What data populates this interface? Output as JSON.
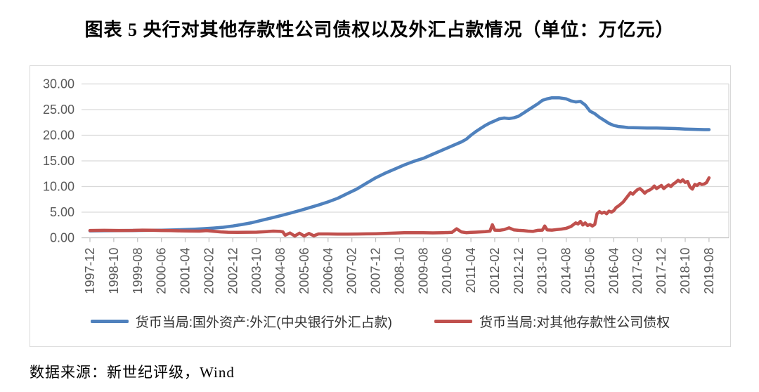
{
  "title": "图表 5  央行对其他存款性公司债权以及外汇占款情况（单位：万亿元）",
  "source": "数据来源：新世纪评级，Wind",
  "colors": {
    "grid": "#d9d9d9",
    "axis": "#bfbfbf",
    "tick_label": "#595959",
    "box_border": "#d9d9d9",
    "series_blue": "#4f81bd",
    "series_red": "#c0504d"
  },
  "chart_data": {
    "type": "line",
    "title": "央行对其他存款性公司债权以及外汇占款情况",
    "unit": "万亿元",
    "ylim": [
      0,
      30
    ],
    "y_tick_labels": [
      "0.00",
      "5.00",
      "10.00",
      "15.00",
      "20.00",
      "25.00",
      "30.00"
    ],
    "x_tick_labels": [
      "1997-12",
      "1998-10",
      "1999-08",
      "2000-06",
      "2001-04",
      "2002-02",
      "2002-12",
      "2003-10",
      "2004-08",
      "2005-06",
      "2006-04",
      "2007-02",
      "2007-12",
      "2008-10",
      "2009-08",
      "2010-06",
      "2011-04",
      "2012-02",
      "2012-12",
      "2013-10",
      "2014-08",
      "2015-06",
      "2016-04",
      "2017-02",
      "2017-12",
      "2018-10",
      "2019-08"
    ],
    "x_range_months": [
      "1997-12",
      "2019-08"
    ],
    "x_encoding": "points are [months_since_1997-12, value_trillion_yuan]",
    "grid": true,
    "legend_position": "bottom",
    "series": [
      {
        "name": "货币当局:国外资产:外汇(中央银行外汇占款)",
        "color": "#4f81bd",
        "points": [
          [
            0,
            1.35
          ],
          [
            6,
            1.38
          ],
          [
            12,
            1.4
          ],
          [
            18,
            1.42
          ],
          [
            24,
            1.45
          ],
          [
            30,
            1.48
          ],
          [
            36,
            1.55
          ],
          [
            40,
            1.6
          ],
          [
            44,
            1.68
          ],
          [
            48,
            1.78
          ],
          [
            52,
            1.9
          ],
          [
            56,
            2.05
          ],
          [
            60,
            2.3
          ],
          [
            64,
            2.6
          ],
          [
            68,
            2.95
          ],
          [
            72,
            3.4
          ],
          [
            76,
            3.85
          ],
          [
            80,
            4.3
          ],
          [
            84,
            4.8
          ],
          [
            88,
            5.3
          ],
          [
            92,
            5.85
          ],
          [
            96,
            6.4
          ],
          [
            100,
            7.0
          ],
          [
            104,
            7.7
          ],
          [
            108,
            8.6
          ],
          [
            112,
            9.5
          ],
          [
            116,
            10.6
          ],
          [
            120,
            11.7
          ],
          [
            124,
            12.6
          ],
          [
            128,
            13.4
          ],
          [
            132,
            14.2
          ],
          [
            136,
            14.9
          ],
          [
            140,
            15.5
          ],
          [
            144,
            16.3
          ],
          [
            148,
            17.1
          ],
          [
            152,
            17.9
          ],
          [
            156,
            18.7
          ],
          [
            158,
            19.2
          ],
          [
            160,
            20.0
          ],
          [
            162,
            20.7
          ],
          [
            164,
            21.3
          ],
          [
            166,
            21.9
          ],
          [
            168,
            22.4
          ],
          [
            170,
            22.8
          ],
          [
            172,
            23.2
          ],
          [
            174,
            23.35
          ],
          [
            176,
            23.25
          ],
          [
            178,
            23.4
          ],
          [
            180,
            23.7
          ],
          [
            182,
            24.3
          ],
          [
            184,
            24.9
          ],
          [
            186,
            25.5
          ],
          [
            188,
            26.1
          ],
          [
            190,
            26.8
          ],
          [
            192,
            27.1
          ],
          [
            194,
            27.3
          ],
          [
            197,
            27.3
          ],
          [
            200,
            27.1
          ],
          [
            202,
            26.7
          ],
          [
            204,
            26.5
          ],
          [
            206,
            26.6
          ],
          [
            208,
            25.9
          ],
          [
            210,
            24.7
          ],
          [
            212,
            24.2
          ],
          [
            214,
            23.5
          ],
          [
            216,
            22.9
          ],
          [
            218,
            22.3
          ],
          [
            220,
            21.9
          ],
          [
            222,
            21.7
          ],
          [
            224,
            21.6
          ],
          [
            226,
            21.5
          ],
          [
            230,
            21.45
          ],
          [
            234,
            21.4
          ],
          [
            238,
            21.4
          ],
          [
            242,
            21.35
          ],
          [
            246,
            21.3
          ],
          [
            250,
            21.2
          ],
          [
            254,
            21.15
          ],
          [
            258,
            21.1
          ],
          [
            260,
            21.1
          ]
        ]
      },
      {
        "name": "货币当局:对其他存款性公司债权",
        "color": "#c0504d",
        "points": [
          [
            0,
            1.42
          ],
          [
            6,
            1.45
          ],
          [
            12,
            1.42
          ],
          [
            18,
            1.44
          ],
          [
            22,
            1.5
          ],
          [
            26,
            1.48
          ],
          [
            30,
            1.42
          ],
          [
            34,
            1.4
          ],
          [
            38,
            1.36
          ],
          [
            42,
            1.32
          ],
          [
            46,
            1.3
          ],
          [
            49,
            1.4
          ],
          [
            52,
            1.28
          ],
          [
            55,
            1.15
          ],
          [
            58,
            1.08
          ],
          [
            62,
            1.05
          ],
          [
            66,
            1.08
          ],
          [
            70,
            1.1
          ],
          [
            74,
            1.2
          ],
          [
            77,
            1.3
          ],
          [
            80,
            1.25
          ],
          [
            81,
            1.15
          ],
          [
            82,
            0.5
          ],
          [
            84,
            0.95
          ],
          [
            86,
            0.35
          ],
          [
            88,
            0.9
          ],
          [
            90,
            0.35
          ],
          [
            92,
            0.85
          ],
          [
            94,
            0.4
          ],
          [
            96,
            0.75
          ],
          [
            100,
            0.76
          ],
          [
            104,
            0.73
          ],
          [
            108,
            0.72
          ],
          [
            112,
            0.74
          ],
          [
            116,
            0.77
          ],
          [
            120,
            0.8
          ],
          [
            124,
            0.85
          ],
          [
            128,
            0.92
          ],
          [
            132,
            0.98
          ],
          [
            136,
            1.0
          ],
          [
            140,
            0.98
          ],
          [
            144,
            0.96
          ],
          [
            148,
            0.98
          ],
          [
            152,
            1.05
          ],
          [
            154,
            1.75
          ],
          [
            156,
            1.15
          ],
          [
            158,
            1.0
          ],
          [
            160,
            1.05
          ],
          [
            162,
            1.1
          ],
          [
            164,
            1.15
          ],
          [
            166,
            1.2
          ],
          [
            168,
            1.3
          ],
          [
            169,
            2.55
          ],
          [
            170,
            1.5
          ],
          [
            172,
            1.45
          ],
          [
            174,
            1.6
          ],
          [
            176,
            1.95
          ],
          [
            178,
            1.55
          ],
          [
            180,
            1.45
          ],
          [
            182,
            1.4
          ],
          [
            184,
            1.3
          ],
          [
            186,
            1.25
          ],
          [
            188,
            1.45
          ],
          [
            190,
            1.5
          ],
          [
            191,
            2.3
          ],
          [
            192,
            1.55
          ],
          [
            194,
            1.5
          ],
          [
            196,
            1.6
          ],
          [
            198,
            1.7
          ],
          [
            200,
            1.85
          ],
          [
            202,
            2.2
          ],
          [
            204,
            2.9
          ],
          [
            205,
            2.7
          ],
          [
            206,
            3.2
          ],
          [
            207,
            2.5
          ],
          [
            208,
            2.9
          ],
          [
            209,
            2.4
          ],
          [
            210,
            2.6
          ],
          [
            211,
            2.3
          ],
          [
            212,
            2.6
          ],
          [
            213,
            4.7
          ],
          [
            214,
            5.1
          ],
          [
            215,
            4.8
          ],
          [
            216,
            5.0
          ],
          [
            217,
            4.7
          ],
          [
            218,
            5.2
          ],
          [
            219,
            5.0
          ],
          [
            220,
            5.3
          ],
          [
            221,
            5.9
          ],
          [
            222,
            6.2
          ],
          [
            223,
            6.6
          ],
          [
            224,
            7.0
          ],
          [
            225,
            7.6
          ],
          [
            226,
            8.2
          ],
          [
            227,
            8.8
          ],
          [
            228,
            8.5
          ],
          [
            229,
            9.0
          ],
          [
            230,
            9.4
          ],
          [
            231,
            9.6
          ],
          [
            232,
            9.2
          ],
          [
            233,
            8.7
          ],
          [
            234,
            9.1
          ],
          [
            235,
            9.3
          ],
          [
            236,
            9.6
          ],
          [
            237,
            10.1
          ],
          [
            238,
            9.6
          ],
          [
            239,
            9.9
          ],
          [
            240,
            10.2
          ],
          [
            241,
            9.6
          ],
          [
            242,
            10.0
          ],
          [
            243,
            10.3
          ],
          [
            244,
            10.0
          ],
          [
            245,
            10.5
          ],
          [
            246,
            10.8
          ],
          [
            247,
            11.2
          ],
          [
            248,
            10.9
          ],
          [
            249,
            11.3
          ],
          [
            250,
            10.8
          ],
          [
            251,
            11.0
          ],
          [
            252,
            9.9
          ],
          [
            253,
            9.5
          ],
          [
            254,
            10.4
          ],
          [
            255,
            10.2
          ],
          [
            256,
            10.6
          ],
          [
            257,
            10.4
          ],
          [
            258,
            10.5
          ],
          [
            259,
            10.8
          ],
          [
            260,
            11.7
          ]
        ]
      }
    ]
  }
}
